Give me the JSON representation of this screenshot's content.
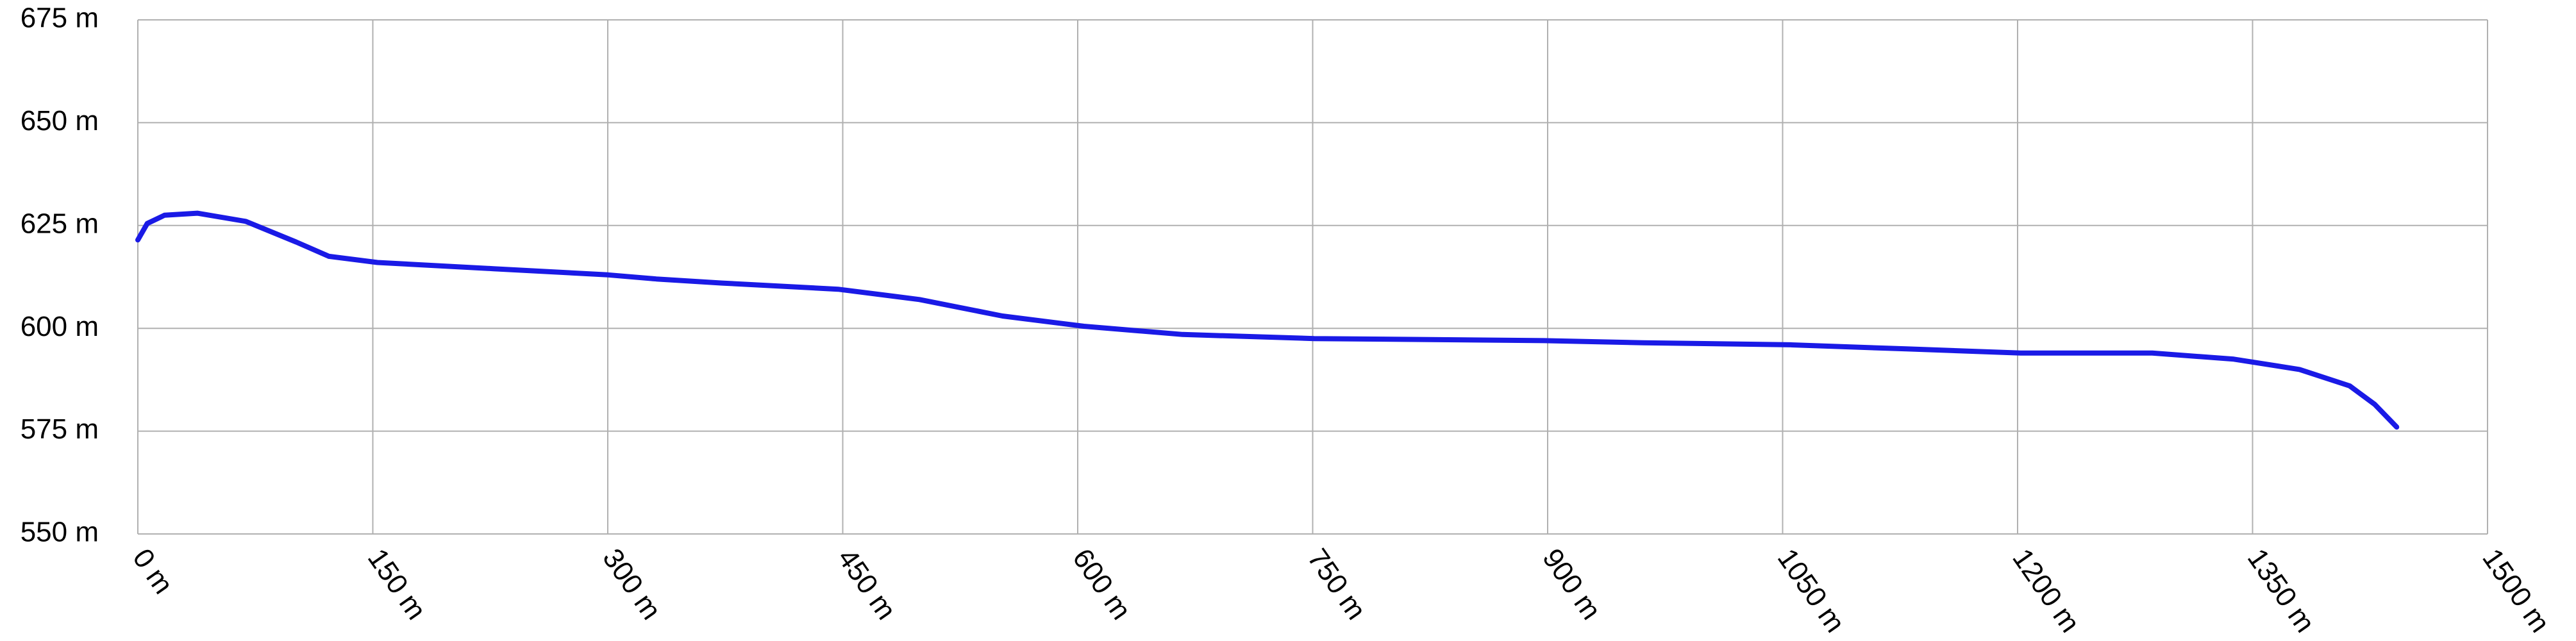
{
  "chart_data": {
    "type": "line",
    "x": [
      0,
      6,
      17,
      38,
      69,
      101,
      122,
      153,
      227,
      300,
      331,
      373,
      447,
      499,
      552,
      604,
      667,
      751,
      898,
      961,
      1055,
      1129,
      1202,
      1286,
      1338,
      1380,
      1412,
      1428,
      1442
    ],
    "series": [
      {
        "color": "#1a1ae6",
        "values": [
          621.5,
          625.5,
          627.5,
          628,
          626,
          621,
          617.5,
          616,
          614.5,
          613,
          612,
          611,
          609.5,
          607,
          603,
          600.5,
          598.5,
          597.5,
          597,
          596.5,
          596,
          595,
          594,
          594,
          592.5,
          590,
          586,
          581.5,
          576
        ]
      }
    ],
    "xlim": [
      0,
      1500
    ],
    "xticks": [
      {
        "value": 0,
        "label": "0 m"
      },
      {
        "value": 150,
        "label": "150 m"
      },
      {
        "value": 300,
        "label": "300 m"
      },
      {
        "value": 450,
        "label": "450 m"
      },
      {
        "value": 600,
        "label": "600 m"
      },
      {
        "value": 750,
        "label": "750 m"
      },
      {
        "value": 900,
        "label": "900 m"
      },
      {
        "value": 1050,
        "label": "1050 m"
      },
      {
        "value": 1200,
        "label": "1200 m"
      },
      {
        "value": 1350,
        "label": "1350 m"
      },
      {
        "value": 1500,
        "label": "1500 m"
      }
    ],
    "ylim": [
      550,
      675
    ],
    "yticks": [
      {
        "value": 550,
        "label": "550 m"
      },
      {
        "value": 575,
        "label": "575 m"
      },
      {
        "value": 600,
        "label": "600 m"
      },
      {
        "value": 625,
        "label": "625 m"
      },
      {
        "value": 650,
        "label": "650 m"
      },
      {
        "value": 675,
        "label": "675 m"
      }
    ],
    "grid": true
  }
}
